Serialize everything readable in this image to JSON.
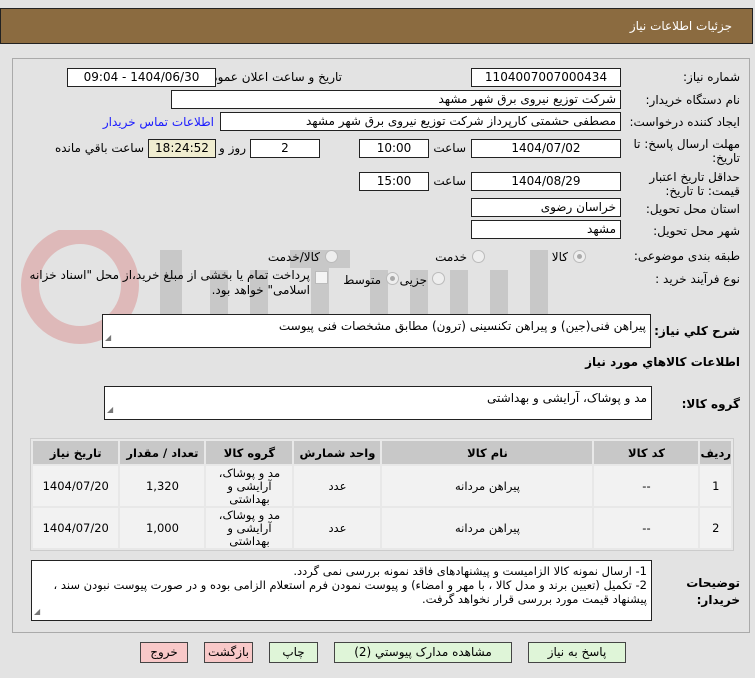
{
  "header": {
    "title": "جزئیات اطلاعات نیاز"
  },
  "watermark": "AriaTender.net",
  "fields": {
    "need_number_label": "شماره نیاز:",
    "need_number": "1104007007000434",
    "announce_label": "تاریخ و ساعت اعلان عمومی:",
    "announce_value": "1404/06/30 - 09:04",
    "buyer_label": "نام دستگاه خریدار:",
    "buyer": "شرکت توزیع نیروی برق شهر مشهد",
    "creator_label": "ایجاد کننده درخواست:",
    "creator": "مصطفی حشمتی کارپرداز شرکت توزیع نیروی برق شهر مشهد",
    "contact_link": "اطلاعات تماس خریدار",
    "deadline_label": "مهلت ارسال پاسخ: تا تاریخ:",
    "deadline_date": "1404/07/02",
    "time_label": "ساعت",
    "deadline_time": "10:00",
    "days": "2",
    "days_label": "روز و",
    "remaining": "18:24:52",
    "remaining_label": "ساعت باقي مانده",
    "validity_label": "حداقل تاريخ اعتبار قيمت: تا تاريخ:",
    "validity_date": "1404/08/29",
    "validity_time": "15:00",
    "province_label": "استان محل تحویل:",
    "province": "خراسان رضوی",
    "city_label": "شهر محل تحویل:",
    "city": "مشهد",
    "category_label": "طبقه بندی موضوعی:",
    "category_options": [
      "کالا",
      "خدمت",
      "کالا/خدمت"
    ],
    "category_selected": "کالا",
    "process_label": "نوع فرآیند خرید :",
    "process_options": [
      "جزیی",
      "متوسط"
    ],
    "process_selected": "جزیی",
    "payment_note": "پرداخت تمام یا بخشی از مبلغ خرید،از محل \"اسناد خزانه اسلامی\" خواهد بود."
  },
  "description": {
    "label": "شرح کلي نياز:",
    "value": "پیراهن فنی(جین) و پیراهن تکنسینی (ترون) مطابق مشخصات فنی پیوست"
  },
  "goods": {
    "section_title": "اطلاعات كالاهاي مورد نياز",
    "group_label": "گروه کالا:",
    "group_value": "مد و پوشاک، آرایشی و بهداشتی",
    "columns": [
      "ردیف",
      "کد کالا",
      "نام کالا",
      "واحد شمارش",
      "گروه کالا",
      "تعداد / مقدار",
      "تاریخ نیاز"
    ],
    "rows": [
      {
        "idx": "1",
        "code": "--",
        "name": "پیراهن مردانه",
        "unit": "عدد",
        "group": "مد و پوشاک، آرایشی و بهداشتی",
        "qty": "1,320",
        "date": "1404/07/20"
      },
      {
        "idx": "2",
        "code": "--",
        "name": "پیراهن مردانه",
        "unit": "عدد",
        "group": "مد و پوشاک، آرایشی و بهداشتی",
        "qty": "1,000",
        "date": "1404/07/20"
      }
    ]
  },
  "notes": {
    "label": "توضیحات خریدار:",
    "lines": [
      "1- ارسال نمونه کالا الزامیست و پیشنهادهای فاقد نمونه بررسی نمی گردد.",
      "2- تکمیل (تعیین برند و مدل کالا ، با مهر و امضاء) و پیوست نمودن فرم استعلام الزامی بوده و در صورت پیوست نبودن سند ، پیشنهاد قیمت مورد بررسی قرار نخواهد گرفت."
    ]
  },
  "buttons": {
    "reply": "پاسخ به نیاز",
    "docs": "مشاهده مدارک پیوستي (2)",
    "print": "چاپ",
    "back": "بازگشت",
    "exit": "خروج"
  },
  "colors": {
    "header": "#8b6b40",
    "remaining_bg": "#f0edd0",
    "link": "#1a1aff",
    "green_button": "#dff5d8",
    "pink_button": "#f8c8c8"
  }
}
